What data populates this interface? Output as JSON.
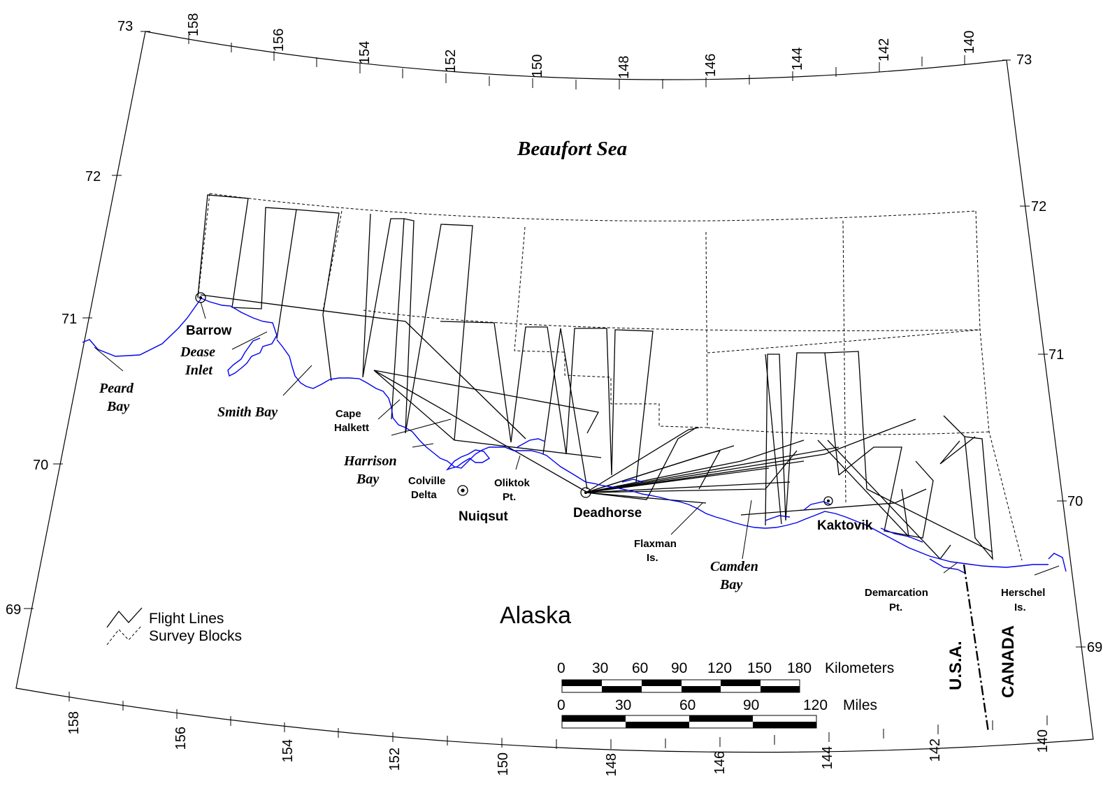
{
  "map": {
    "sea_label": "Beaufort Sea",
    "region_label": "Alaska",
    "top_lon_ticks": [
      "158",
      "156",
      "154",
      "152",
      "150",
      "148",
      "146",
      "144",
      "142",
      "140"
    ],
    "bottom_lon_ticks": [
      "158",
      "156",
      "154",
      "152",
      "150",
      "148",
      "146",
      "144",
      "142",
      "140"
    ],
    "left_lat_ticks": [
      "73",
      "72",
      "71",
      "70",
      "69"
    ],
    "right_lat_ticks": [
      "73",
      "72",
      "71",
      "70",
      "69"
    ],
    "places": {
      "barrow": "Barrow",
      "dease": [
        "Dease",
        "Inlet"
      ],
      "peard": [
        "Peard",
        "Bay"
      ],
      "smith": "Smith Bay",
      "cape_halkett": [
        "Cape",
        "Halkett"
      ],
      "harrison": [
        "Harrison",
        "Bay"
      ],
      "colville": [
        "Colville",
        "Delta"
      ],
      "nuiqsut": "Nuiqsut",
      "oliktok": [
        "Oliktok",
        "Pt."
      ],
      "deadhorse": "Deadhorse",
      "flaxman": [
        "Flaxman",
        "Is."
      ],
      "camden": [
        "Camden",
        "Bay"
      ],
      "kaktovik": "Kaktovik",
      "demarcation": [
        "Demarcation",
        "Pt."
      ],
      "herschel": [
        "Herschel",
        "Is."
      ],
      "usa": "U.S.A.",
      "canada": "CANADA"
    },
    "legend": {
      "flight_lines": "Flight Lines",
      "survey_blocks": "Survey Blocks"
    },
    "scale": {
      "km_ticks": [
        "0",
        "30",
        "60",
        "90",
        "120",
        "150",
        "180"
      ],
      "km_unit": "Kilometers",
      "mi_ticks": [
        "0",
        "30",
        "60",
        "90",
        "120"
      ],
      "mi_unit": "Miles"
    },
    "colors": {
      "coastline": "#0000ee",
      "lines": "#000000"
    }
  }
}
